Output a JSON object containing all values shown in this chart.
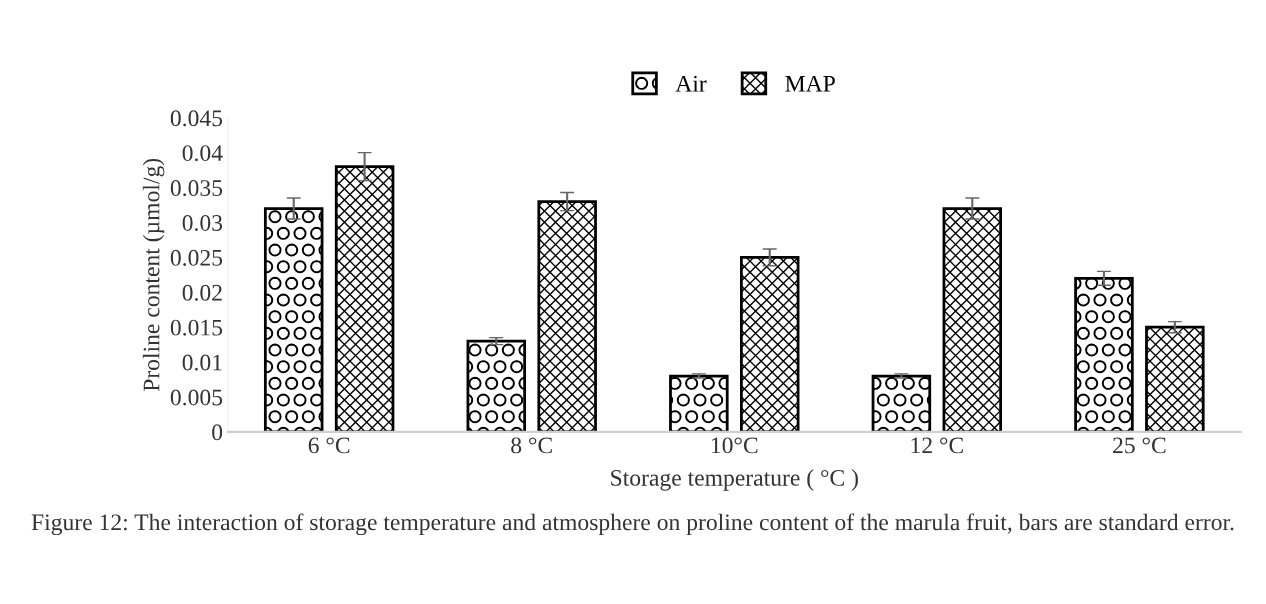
{
  "chart_data": {
    "type": "bar",
    "xlabel": "Storage temperature ( °C )",
    "ylabel": "Proline content (µmol/g)",
    "categories": [
      "6 °C",
      "8 °C",
      "10°C",
      "12 °C",
      "25 °C"
    ],
    "series": [
      {
        "name": "Air",
        "color": "#000000",
        "values": [
          0.032,
          0.013,
          0.008,
          0.008,
          0.022
        ],
        "errors": [
          0.0015,
          0.0005,
          0.0003,
          0.0003,
          0.001
        ]
      },
      {
        "name": "MAP",
        "color": "#000000",
        "values": [
          0.038,
          0.033,
          0.025,
          0.032,
          0.015
        ],
        "errors": [
          0.002,
          0.0013,
          0.0012,
          0.0015,
          0.0008
        ]
      }
    ],
    "ylim": [
      0,
      0.045
    ],
    "yticks": [
      {
        "value": 0,
        "label": "0"
      },
      0.005,
      0.01,
      0.015,
      0.02,
      0.025,
      0.03,
      0.035,
      0.04,
      0.045
    ],
    "legend": "top",
    "grid": false,
    "annotations": [
      "Figure 12: The interaction of storage temperature and atmosphere on proline content of the marula fruit, bars are standard error."
    ]
  }
}
